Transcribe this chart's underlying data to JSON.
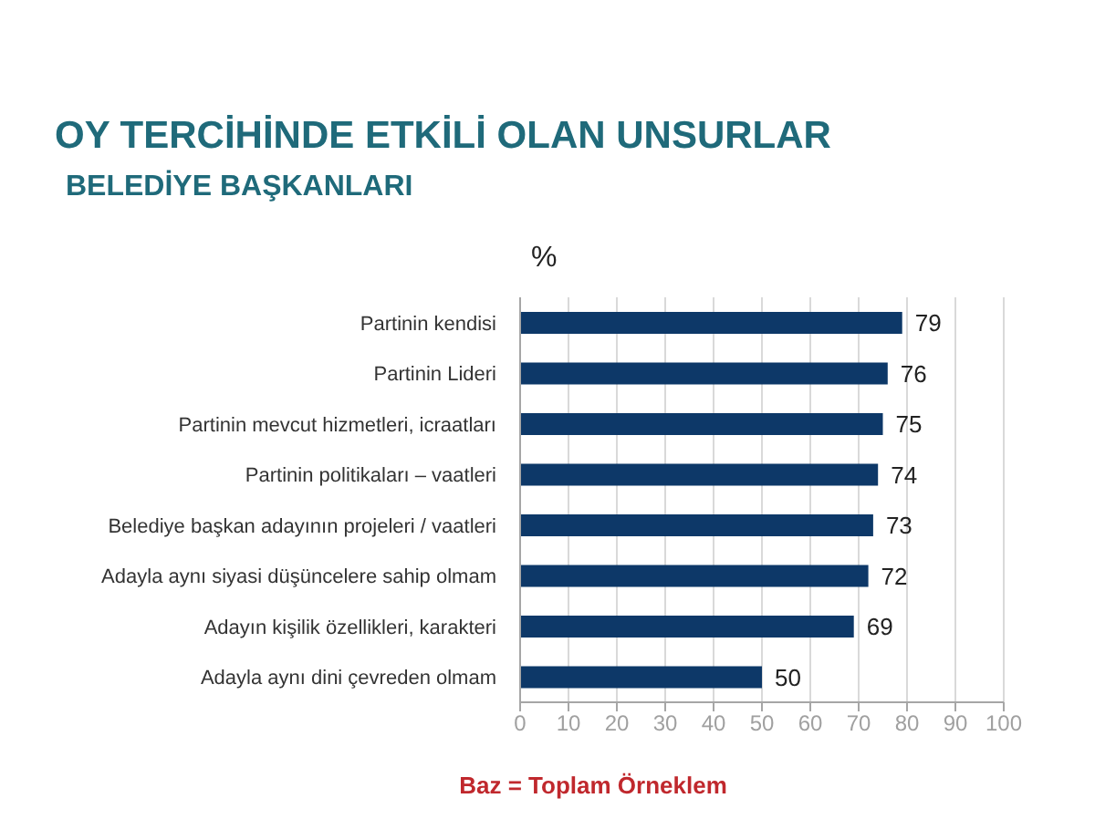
{
  "chart_data": {
    "type": "bar",
    "orientation": "horizontal",
    "title": "OY TERCİHİNDE ETKİLİ OLAN UNSURLAR",
    "subtitle": "BELEDİYE BAŞKANLARI",
    "xlabel": "%",
    "categories": [
      "Partinin kendisi",
      "Partinin Lideri",
      "Partinin mevcut hizmetleri, icraatları",
      "Partinin politikaları – vaatleri",
      "Belediye başkan adayının projeleri / vaatleri",
      "Adayla aynı siyasi düşüncelere sahip olmam",
      "Adayın kişilik özellikleri, karakteri",
      "Adayla aynı dini çevreden olmam"
    ],
    "values": [
      79,
      76,
      75,
      74,
      73,
      72,
      69,
      50
    ],
    "color": "#0d3868",
    "xlim": [
      0,
      100
    ],
    "xticks": [
      0,
      10,
      20,
      30,
      40,
      50,
      60,
      70,
      80,
      90,
      100
    ],
    "grid": "x",
    "data_labels": true,
    "annotations": [
      "Baz = Toplam Örneklem"
    ]
  }
}
